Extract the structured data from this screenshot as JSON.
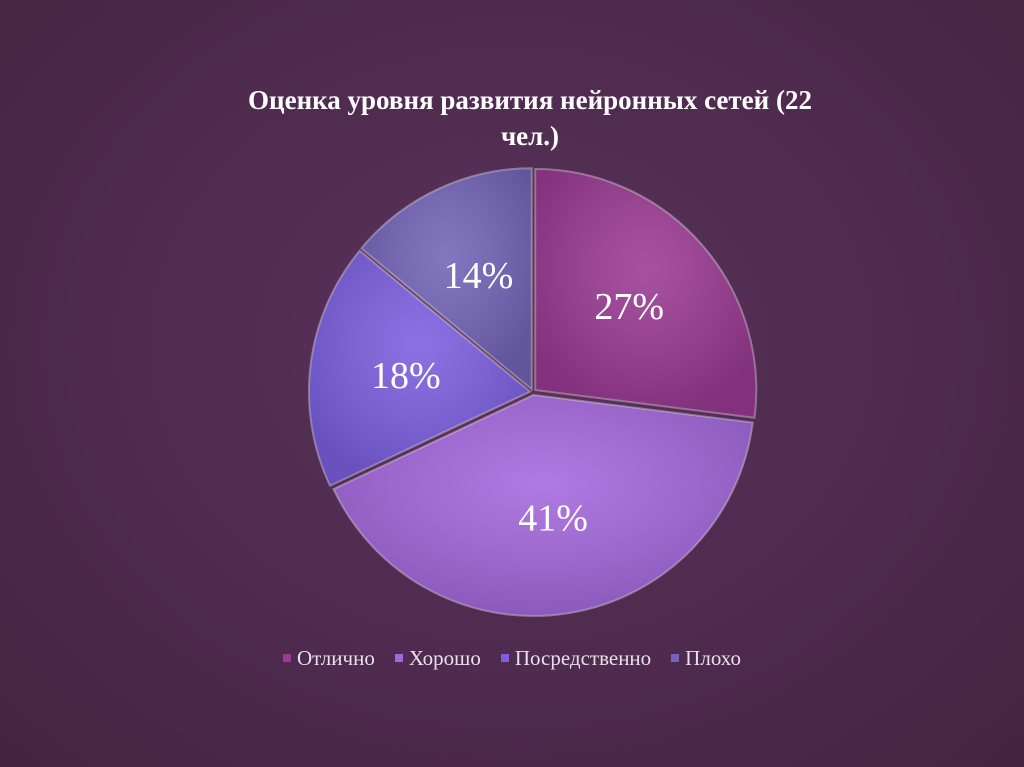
{
  "chart_data": {
    "type": "pie",
    "title_lines": [
      "Оценка уровня развития нейронных сетей (22",
      "чел.)"
    ],
    "categories": [
      "Отлично",
      "Хорошо",
      "Посредственно",
      "Плохо"
    ],
    "values": [
      27,
      41,
      18,
      14
    ],
    "labels": [
      "27%",
      "41%",
      "18%",
      "14%"
    ],
    "colors": [
      "#9a3a93",
      "#a468dd",
      "#7b5fdf",
      "#7264b8"
    ],
    "start_angle": "12 o'clock",
    "direction": "clockwise",
    "legend_position": "bottom"
  }
}
